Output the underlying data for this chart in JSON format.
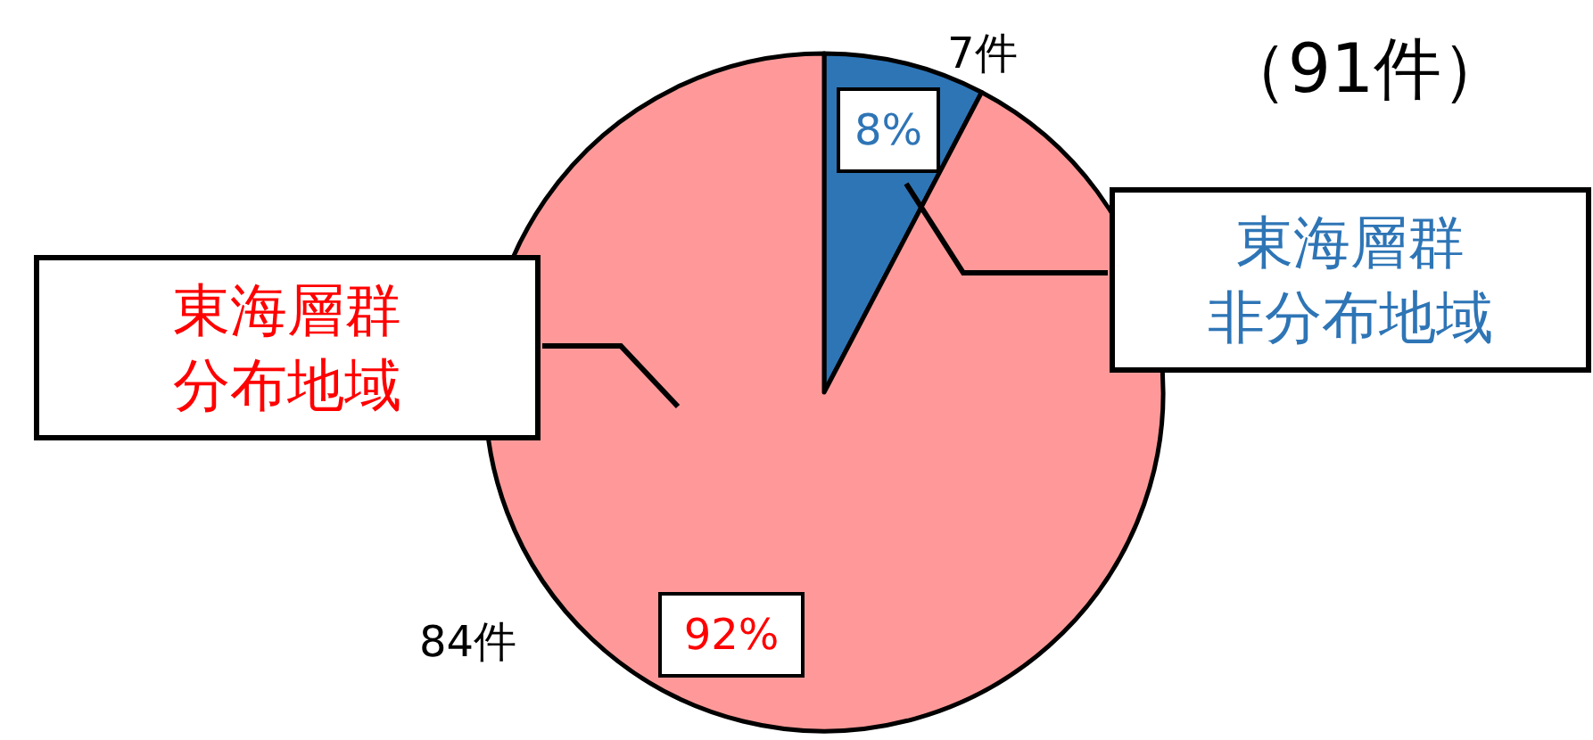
{
  "chart_data": {
    "type": "pie",
    "title": "（91件）",
    "categories": [
      "東海層群非分布地域",
      "東海層群分布地域"
    ],
    "values": [
      7,
      84
    ],
    "colors": [
      "#2e75b6",
      "#ff9999"
    ],
    "value_labels": [
      "7件",
      "84件"
    ],
    "annotations": [
      "8%",
      "92%"
    ]
  }
}
